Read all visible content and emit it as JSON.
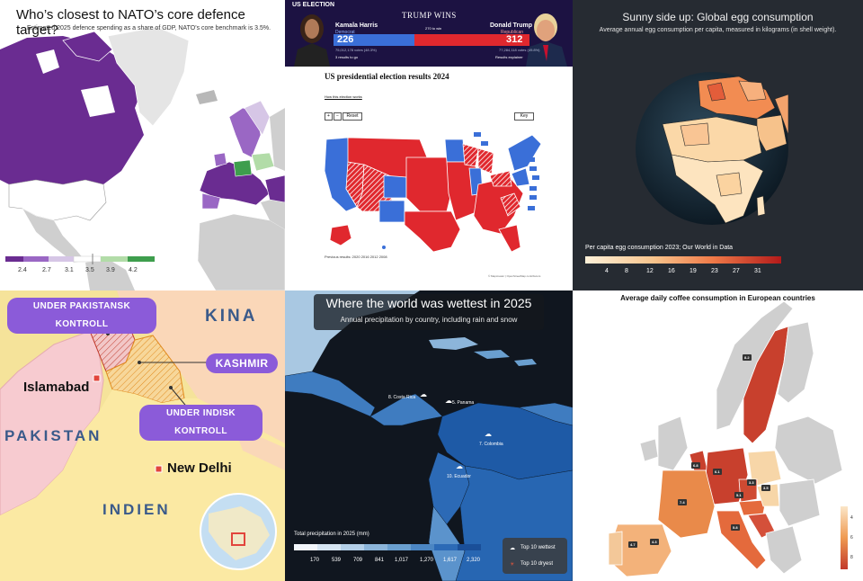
{
  "panel_nato": {
    "title": "Who’s closest to NATO’s core defence target?",
    "subtitle": "Estimated 2025 defence spending as a share of GDP, NATO’s core benchmark is 3.5%.",
    "legend_ticks": [
      "2.4",
      "2.7",
      "3.1",
      "3.5",
      "3.9",
      "4.2"
    ],
    "legend_colors": [
      "#6a2c91",
      "#9a67c4",
      "#d6c6e6",
      "#ffffff",
      "#b2dca8",
      "#3e9e4d"
    ]
  },
  "panel_election": {
    "tag": "US ELECTION",
    "winner_text": "TRUMP WINS",
    "left_name": "Kamala Harris",
    "left_party": "Democrat",
    "left_votes": "226",
    "right_name": "Donald Trump",
    "right_party": "Republican",
    "right_votes": "312",
    "to_win": "270 to win",
    "left_small": "75,012,178 votes (48.3%)",
    "right_small": "77,284,118 votes (49.8%)",
    "left_link": "3 results to go",
    "right_link": "Results explainer",
    "map_title": "US presidential election results 2024",
    "how_link": "How this election works",
    "btn_plus": "+",
    "btn_minus": "−",
    "btn_reset": "Reset",
    "btn_key": "Key",
    "footer": "Previous results:  2020   2016   2012   2008",
    "credit": "© Mapcreator | OpenStreetMap contributors",
    "colors": {
      "dem": "#3a6fd8",
      "rep": "#e0282e",
      "banner": "#1c1242"
    }
  },
  "panel_eggs": {
    "title": "Sunny side up: Global egg consumption",
    "subtitle": "Average annual egg consumption per capita, measured in kilograms (in shell weight).",
    "legend_title": "Per capita egg consumption 2023; Our World in Data",
    "legend_ticks": [
      "4",
      "8",
      "12",
      "16",
      "19",
      "23",
      "27",
      "31"
    ]
  },
  "panel_kashmir": {
    "pill_pak": "UNDER PAKISTANSK KONTROLL",
    "pill_kashmir": "KASHMIR",
    "pill_ind": "UNDER INDISK KONTROLL",
    "label_kina": "KINA",
    "label_pakistan": "PAKISTAN",
    "label_indien": "INDIEN",
    "city_islamabad": "Islamabad",
    "city_delhi": "New Delhi"
  },
  "panel_rain": {
    "title": "Where the world was wettest in 2025",
    "subtitle": "Annual precipitation by country, including rain and snow",
    "labels": [
      "8. Costa Rica",
      "5. Panama",
      "7. Colombia",
      "10. Ecuador"
    ],
    "legend_title": "Total precipitation in 2025 (mm)",
    "legend_ticks": [
      "170",
      "539",
      "709",
      "841",
      "1,017",
      "1,270",
      "1,617",
      "2,320"
    ],
    "key_wettest": "Top 10 wettest",
    "key_driest": "Top 10 dryest"
  },
  "panel_coffee": {
    "title": "Average daily coffee consumption in European countries",
    "values": [
      "8.2",
      "6.8",
      "6.1",
      "3.3",
      "3.5",
      "7.4",
      "5.1",
      "5.8",
      "4.7",
      "4.3"
    ],
    "legend_ticks": [
      "4",
      "6",
      "8"
    ]
  }
}
